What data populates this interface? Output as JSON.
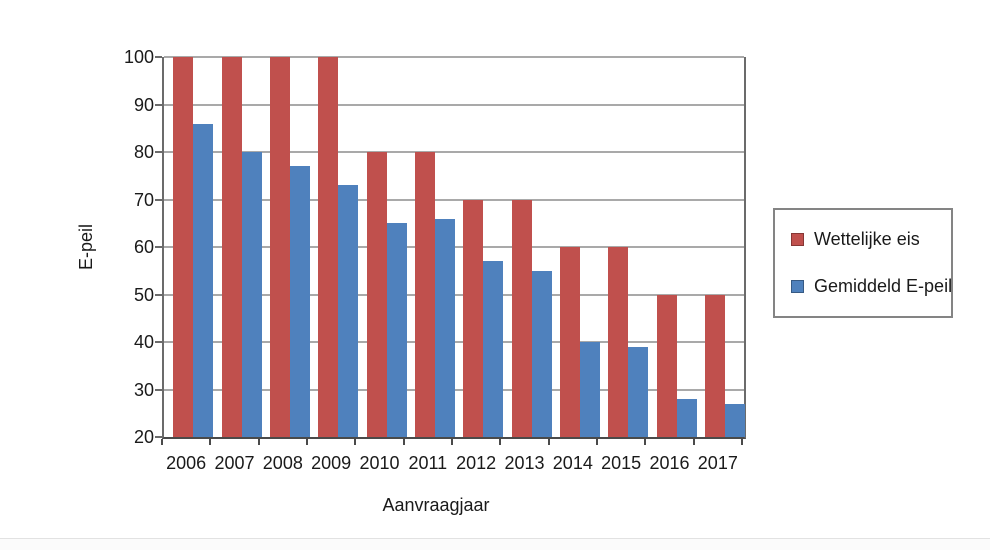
{
  "chart_data": {
    "type": "bar",
    "title": "",
    "categories": [
      "2006",
      "2007",
      "2008",
      "2009",
      "2010",
      "2011",
      "2012",
      "2013",
      "2014",
      "2015",
      "2016",
      "2017"
    ],
    "series": [
      {
        "name": "Wettelijke eis",
        "color": "#C0504D",
        "values": [
          100,
          100,
          100,
          100,
          80,
          80,
          70,
          70,
          60,
          60,
          50,
          50
        ]
      },
      {
        "name": "Gemiddeld E-peil",
        "color": "#4F81BD",
        "values": [
          86,
          80,
          77,
          73,
          65,
          66,
          57,
          55,
          40,
          39,
          28,
          27
        ]
      }
    ],
    "xlabel": "Aanvraagjaar",
    "ylabel": "E-peil",
    "ylim": [
      20,
      100
    ],
    "ytick_step": 10,
    "y_ticks": [
      100,
      90,
      80,
      70,
      60,
      50,
      40,
      30,
      20
    ],
    "grid": true,
    "legend_position": "right"
  },
  "colors": {
    "grid": "#a9a9a9",
    "axis": "#6b6b6b",
    "axis_bottom": "#4a4a4a",
    "text": "#1a1a1a",
    "legend_border": "#848484",
    "background": "#ffffff"
  }
}
